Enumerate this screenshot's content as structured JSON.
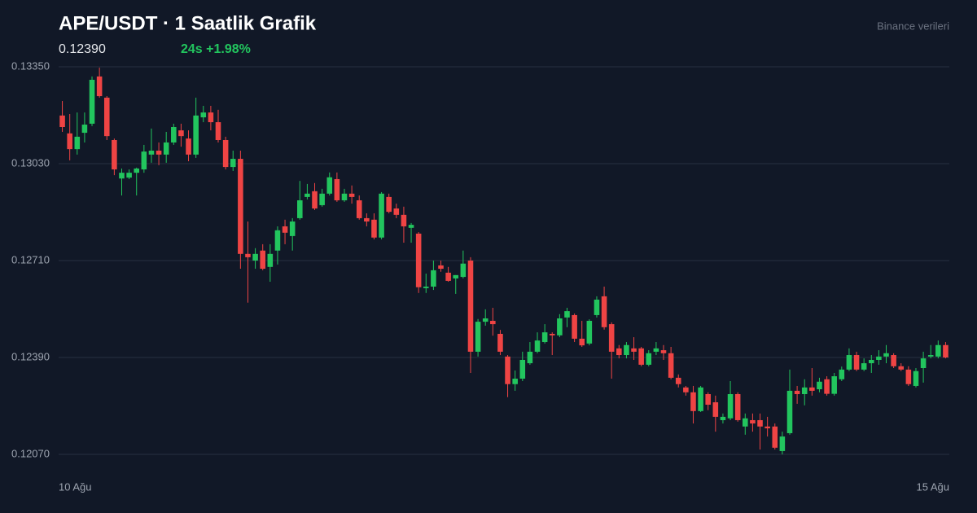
{
  "chart_data": {
    "type": "candlestick",
    "title": "APE/USDT · 1 Saatlik Grafik",
    "price": "0.12390",
    "change": "24s +1.98%",
    "source": "Binance verileri",
    "up_color": "#22c55e",
    "down_color": "#ef4444",
    "grid": true,
    "ylim": [
      0.1207,
      0.1335
    ],
    "yticks": [
      {
        "value": 0.1335,
        "label": "0.13350"
      },
      {
        "value": 0.1303,
        "label": "0.13030"
      },
      {
        "value": 0.1271,
        "label": "0.12710"
      },
      {
        "value": 0.1239,
        "label": "0.12390"
      },
      {
        "value": 0.1207,
        "label": "0.12070"
      }
    ],
    "categories": [
      "10 Ağu",
      null,
      null,
      null,
      null,
      null,
      null,
      null,
      null,
      null,
      null,
      null,
      null,
      null,
      null,
      null,
      null,
      null,
      null,
      null,
      null,
      null,
      null,
      null,
      null,
      null,
      null,
      null,
      null,
      null,
      null,
      null,
      null,
      null,
      null,
      null,
      null,
      null,
      null,
      null,
      null,
      null,
      null,
      null,
      null,
      null,
      null,
      null,
      null,
      null,
      null,
      null,
      null,
      null,
      null,
      null,
      null,
      null,
      null,
      null,
      null,
      null,
      null,
      null,
      null,
      null,
      null,
      null,
      null,
      null,
      null,
      null,
      null,
      null,
      null,
      null,
      null,
      null,
      null,
      null,
      null,
      null,
      null,
      null,
      null,
      null,
      null,
      null,
      null,
      null,
      null,
      null,
      null,
      null,
      null,
      null,
      null,
      null,
      null,
      null,
      null,
      null,
      null,
      null,
      null,
      null,
      null,
      null,
      null,
      null,
      null,
      null,
      null,
      null,
      null,
      null,
      null,
      null,
      null,
      "15 Ağu"
    ],
    "open": [
      0.13189,
      0.1313,
      0.13078,
      0.13132,
      0.13162,
      0.13318,
      0.13248,
      0.13108,
      0.12981,
      0.12984,
      0.13,
      0.13011,
      0.1306,
      0.13073,
      0.1306,
      0.131,
      0.1314,
      0.13113,
      0.1306,
      0.13183,
      0.13199,
      0.13167,
      0.13108,
      0.13019,
      0.13046,
      0.12732,
      0.1271,
      0.12743,
      0.12689,
      0.12743,
      0.12823,
      0.12791,
      0.1285,
      0.1292,
      0.12939,
      0.12893,
      0.12931,
      0.12979,
      0.12909,
      0.12931,
      0.12909,
      0.1285,
      0.12845,
      0.12786,
      0.1292,
      0.12882,
      0.12861,
      0.12818,
      0.12799,
      0.12619,
      0.12624,
      0.12694,
      0.1267,
      0.12651,
      0.12656,
      0.1271,
      0.12409,
      0.12508,
      0.12511,
      0.12468,
      0.12393,
      0.12302,
      0.1232,
      0.12371,
      0.12409,
      0.12441,
      0.12468,
      0.12463,
      0.12522,
      0.1253,
      0.12452,
      0.12436,
      0.1253,
      0.12592,
      0.125,
      0.1242,
      0.12398,
      0.1242,
      0.1242,
      0.12366,
      0.12409,
      0.12414,
      0.12404,
      0.12323,
      0.12291,
      0.12275,
      0.12213,
      0.12269,
      0.12242,
      0.12183,
      0.12189,
      0.12269,
      0.12162,
      0.12183,
      0.12183,
      0.12162,
      0.12162,
      0.12081,
      0.1214,
      0.1228,
      0.12269,
      0.12291,
      0.12285,
      0.12318,
      0.1227,
      0.12318,
      0.1235,
      0.12398,
      0.1235,
      0.12371,
      0.12382,
      0.12393,
      0.12398,
      0.12361,
      0.1235,
      0.12296,
      0.12355,
      0.12393,
      0.12393,
      0.12431
    ],
    "high": [
      0.13237,
      0.13194,
      0.13199,
      0.13199,
      0.13318,
      0.13347,
      0.13253,
      0.13113,
      0.13014,
      0.13011,
      0.13017,
      0.13092,
      0.13146,
      0.131,
      0.13135,
      0.13162,
      0.13162,
      0.1314,
      0.13248,
      0.13221,
      0.13221,
      0.13208,
      0.13119,
      0.13073,
      0.13073,
      0.12839,
      0.12751,
      0.12764,
      0.12764,
      0.12823,
      0.12845,
      0.1285,
      0.12973,
      0.12963,
      0.12966,
      0.12947,
      0.13001,
      0.13001,
      0.12947,
      0.12958,
      0.12925,
      0.12866,
      0.12866,
      0.12936,
      0.12931,
      0.12898,
      0.12888,
      0.12834,
      0.12804,
      0.12667,
      0.1271,
      0.1271,
      0.12689,
      0.12662,
      0.12743,
      0.12721,
      0.12517,
      0.12549,
      0.12554,
      0.12481,
      0.12398,
      0.12347,
      0.12409,
      0.12441,
      0.12473,
      0.125,
      0.12473,
      0.12533,
      0.12554,
      0.12535,
      0.12511,
      0.12516,
      0.12592,
      0.12624,
      0.12506,
      0.12431,
      0.12441,
      0.12457,
      0.12425,
      0.12414,
      0.12441,
      0.12431,
      0.12425,
      0.12334,
      0.12296,
      0.12296,
      0.12296,
      0.12275,
      0.12264,
      0.12205,
      0.12312,
      0.12275,
      0.12205,
      0.12205,
      0.12205,
      0.12194,
      0.12172,
      0.12145,
      0.1235,
      0.12296,
      0.12318,
      0.12355,
      0.12323,
      0.12328,
      0.12339,
      0.1236,
      0.1242,
      0.12409,
      0.12387,
      0.12398,
      0.12414,
      0.12431,
      0.12404,
      0.12371,
      0.12361,
      0.12355,
      0.12409,
      0.12431,
      0.12446,
      0.12441
    ],
    "low": [
      0.13135,
      0.13041,
      0.1306,
      0.131,
      0.13154,
      0.13248,
      0.13108,
      0.12992,
      0.12925,
      0.12979,
      0.12925,
      0.13,
      0.13033,
      0.13025,
      0.13033,
      0.13092,
      0.13086,
      0.13038,
      0.13049,
      0.13167,
      0.1314,
      0.131,
      0.13011,
      0.13006,
      0.12683,
      0.12571,
      0.12683,
      0.12678,
      0.1264,
      0.12697,
      0.12764,
      0.12743,
      0.12845,
      0.12912,
      0.12877,
      0.12888,
      0.12925,
      0.12904,
      0.12904,
      0.12898,
      0.12845,
      0.12823,
      0.1278,
      0.1278,
      0.12866,
      0.1285,
      0.12769,
      0.12769,
      0.12603,
      0.12603,
      0.12613,
      0.12673,
      0.1264,
      0.126,
      0.12651,
      0.12339,
      0.12393,
      0.12495,
      0.12462,
      0.12398,
      0.12259,
      0.1228,
      0.12312,
      0.12366,
      0.12404,
      0.12436,
      0.12398,
      0.12457,
      0.1249,
      0.12441,
      0.12425,
      0.1243,
      0.12522,
      0.12482,
      0.1232,
      0.12387,
      0.12387,
      0.12382,
      0.12361,
      0.12361,
      0.12398,
      0.12382,
      0.12318,
      0.12291,
      0.12264,
      0.12172,
      0.1221,
      0.12216,
      0.12145,
      0.12172,
      0.12183,
      0.12178,
      0.12135,
      0.12145,
      0.12086,
      0.12129,
      0.12086,
      0.1207,
      0.12135,
      0.12237,
      0.12232,
      0.12264,
      0.12275,
      0.12264,
      0.12264,
      0.12312,
      0.12345,
      0.12345,
      0.12345,
      0.12339,
      0.12366,
      0.12371,
      0.12355,
      0.12345,
      0.12296,
      0.12291,
      0.12307,
      0.12387,
      0.12387,
      0.12387
    ],
    "close": [
      0.13151,
      0.13078,
      0.13119,
      0.13159,
      0.13307,
      0.13253,
      0.13121,
      0.13011,
      0.13,
      0.13,
      0.13014,
      0.1307,
      0.13073,
      0.1306,
      0.131,
      0.13151,
      0.13121,
      0.1306,
      0.13189,
      0.13199,
      0.13167,
      0.13108,
      0.13019,
      0.13046,
      0.12732,
      0.12721,
      0.12732,
      0.12683,
      0.12732,
      0.1281,
      0.12802,
      0.12839,
      0.12909,
      0.12931,
      0.12882,
      0.12931,
      0.12985,
      0.12909,
      0.12931,
      0.1292,
      0.1285,
      0.12839,
      0.12786,
      0.12931,
      0.12871,
      0.12861,
      0.12823,
      0.12828,
      0.12622,
      0.12624,
      0.12678,
      0.12683,
      0.12643,
      0.12662,
      0.127,
      0.12409,
      0.12508,
      0.12519,
      0.125,
      0.12409,
      0.12302,
      0.1232,
      0.12382,
      0.12409,
      0.12446,
      0.12473,
      0.12463,
      0.12519,
      0.12543,
      0.12452,
      0.1243,
      0.12511,
      0.12581,
      0.1249,
      0.12409,
      0.12398,
      0.12431,
      0.12409,
      0.12366,
      0.12404,
      0.1242,
      0.12404,
      0.12323,
      0.12302,
      0.12275,
      0.12213,
      0.12291,
      0.12234,
      0.12194,
      0.12194,
      0.12269,
      0.12183,
      0.12189,
      0.12172,
      0.12162,
      0.12156,
      0.12092,
      0.12129,
      0.1228,
      0.12269,
      0.12291,
      0.1228,
      0.1231,
      0.1227,
      0.12328,
      0.1235,
      0.12398,
      0.1235,
      0.12371,
      0.12382,
      0.12393,
      0.12404,
      0.12361,
      0.1235,
      0.12302,
      0.12345,
      0.12387,
      0.12398,
      0.12431,
      0.1239
    ]
  }
}
